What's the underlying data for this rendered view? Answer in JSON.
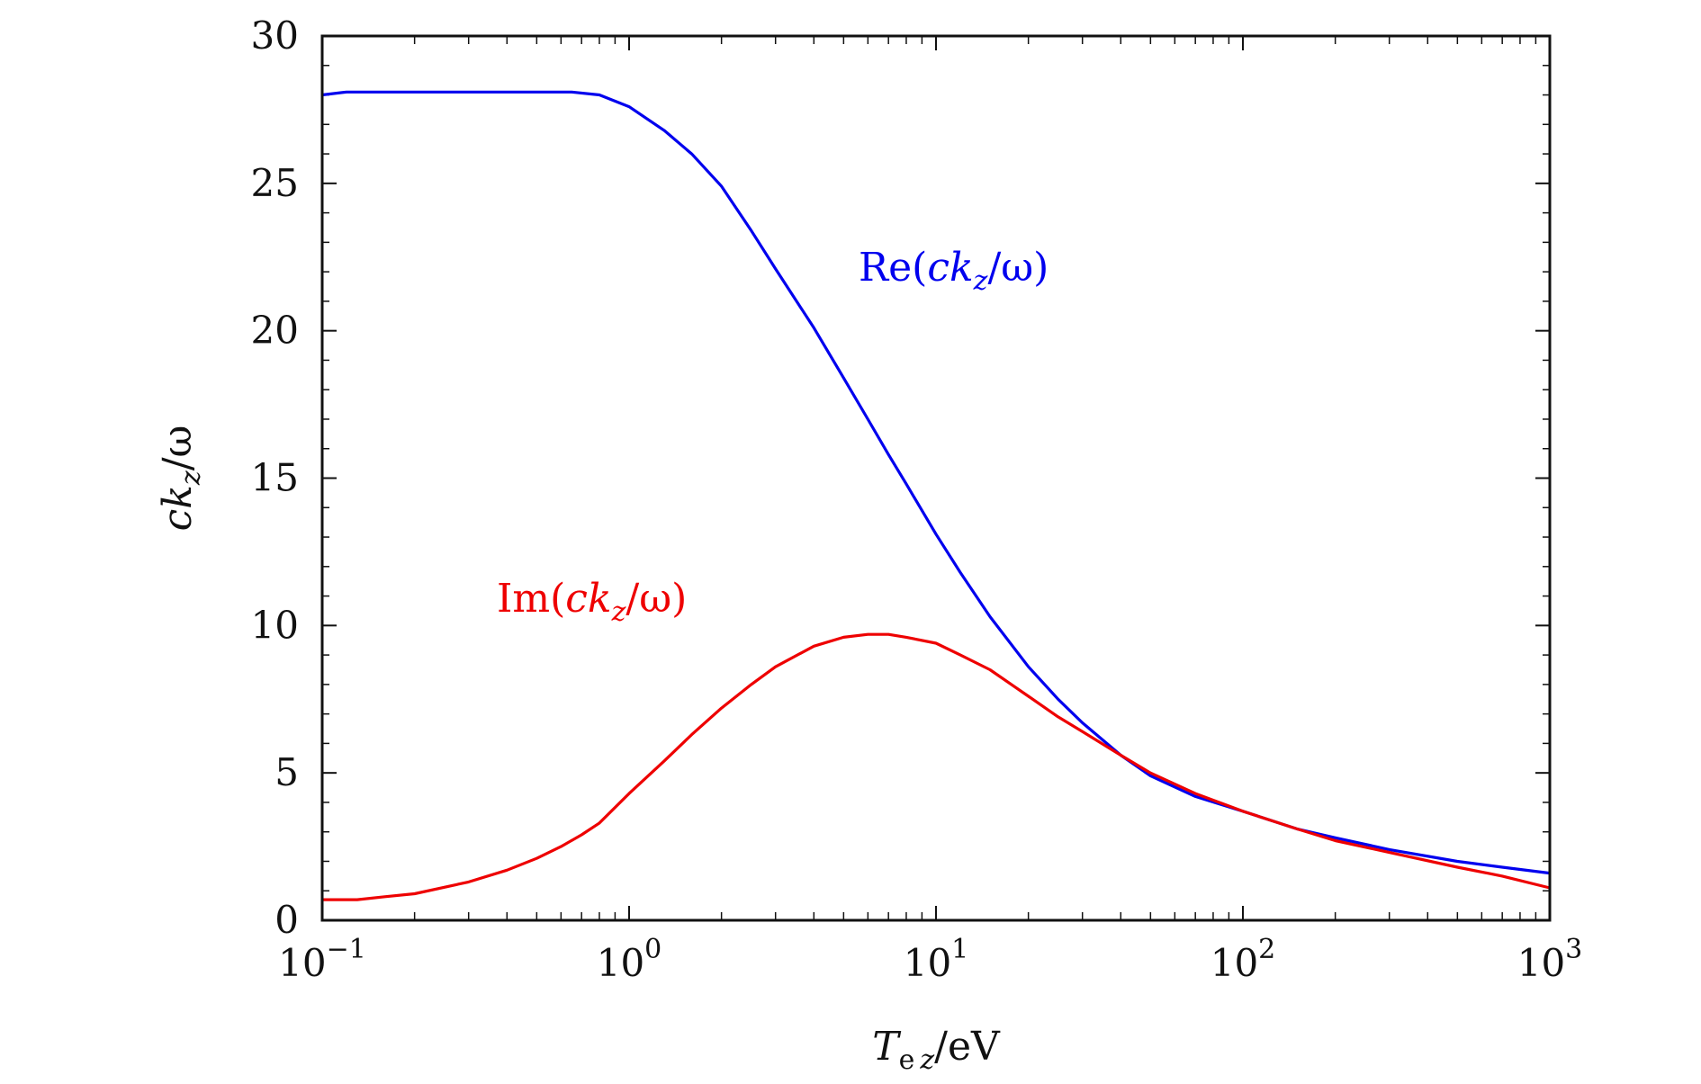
{
  "chart_data": {
    "type": "line",
    "title": "",
    "xlabel": "T_e z/eV",
    "xlabel_parts": {
      "main": "T",
      "sub1": "e",
      "sub2": "z",
      "suffix": "/eV"
    },
    "ylabel": "ck_z/ω",
    "ylabel_parts": {
      "main": "ck",
      "sub": "z",
      "suffix": "/ω"
    },
    "x_scale": "log",
    "xlim": [
      0.1,
      1000
    ],
    "ylim": [
      0,
      30
    ],
    "x_ticks": [
      {
        "value": 0.1,
        "base": "10",
        "exp": "−1"
      },
      {
        "value": 1,
        "base": "10",
        "exp": "0"
      },
      {
        "value": 10,
        "base": "10",
        "exp": "1"
      },
      {
        "value": 100,
        "base": "10",
        "exp": "2"
      },
      {
        "value": 1000,
        "base": "10",
        "exp": "3"
      }
    ],
    "y_ticks": [
      0,
      5,
      10,
      15,
      20,
      25,
      30
    ],
    "grid": false,
    "legend": "inline-labels",
    "series": [
      {
        "name": "Re(ck_z/ω)",
        "label_parts": {
          "pre": "Re(",
          "main": "ck",
          "sub": "z",
          "post": "/ω)"
        },
        "color": "#0000ee",
        "x": [
          0.1,
          0.12,
          0.15,
          0.2,
          0.3,
          0.5,
          0.65,
          0.8,
          1,
          1.3,
          1.6,
          2,
          2.5,
          3,
          4,
          5,
          6,
          7,
          8,
          10,
          12,
          15,
          20,
          25,
          30,
          40,
          50,
          70,
          100,
          150,
          200,
          300,
          500,
          700,
          1000
        ],
        "y": [
          28.0,
          28.1,
          28.1,
          28.1,
          28.1,
          28.1,
          28.1,
          28.0,
          27.6,
          26.8,
          26.0,
          24.9,
          23.4,
          22.1,
          20.1,
          18.4,
          17.0,
          15.8,
          14.8,
          13.1,
          11.8,
          10.3,
          8.6,
          7.5,
          6.7,
          5.6,
          4.9,
          4.2,
          3.7,
          3.1,
          2.8,
          2.4,
          2.0,
          1.8,
          1.6
        ]
      },
      {
        "name": "Im(ck_z/ω)",
        "label_parts": {
          "pre": "Im(",
          "main": "ck",
          "sub": "z",
          "post": "/ω)"
        },
        "color": "#ee0000",
        "x": [
          0.1,
          0.13,
          0.16,
          0.2,
          0.3,
          0.4,
          0.5,
          0.6,
          0.7,
          0.8,
          1,
          1.3,
          1.6,
          2,
          2.5,
          3,
          4,
          5,
          6,
          7,
          8,
          10,
          12,
          15,
          20,
          25,
          30,
          40,
          50,
          70,
          100,
          150,
          200,
          300,
          500,
          700,
          1000
        ],
        "y": [
          0.7,
          0.7,
          0.8,
          0.9,
          1.3,
          1.7,
          2.1,
          2.5,
          2.9,
          3.3,
          4.3,
          5.4,
          6.3,
          7.2,
          8.0,
          8.6,
          9.3,
          9.6,
          9.7,
          9.7,
          9.6,
          9.4,
          9.0,
          8.5,
          7.6,
          6.9,
          6.4,
          5.6,
          5.0,
          4.3,
          3.7,
          3.1,
          2.7,
          2.3,
          1.8,
          1.5,
          1.1
        ]
      }
    ]
  }
}
